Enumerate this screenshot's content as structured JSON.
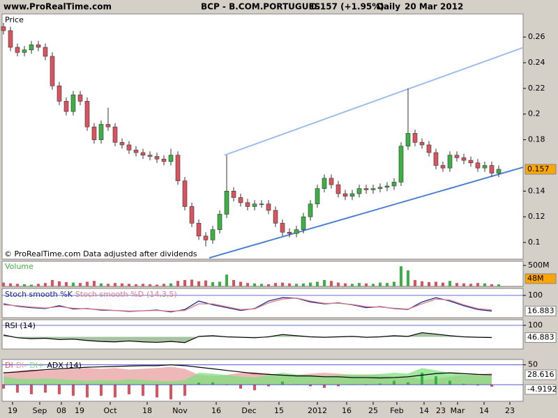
{
  "header": {
    "site": "www.ProRealTime.com",
    "symbol": "BCP - B.COM.PORTUGUES",
    "quote": "0.157 (+1.95%)",
    "period": "Daily",
    "date": "20 Mar 2012"
  },
  "x_labels": [
    "19",
    "Sep",
    "08",
    "19",
    "Oct",
    "18",
    "Nov",
    "16",
    "Dec",
    "15",
    "2012",
    "16",
    "25",
    "Feb",
    "14",
    "23",
    "Mar",
    "14",
    "23"
  ],
  "chart_data": [
    {
      "type": "candlestick",
      "title": "Price",
      "footnote": "© ProRealTime.com  Data adjusted after dividends",
      "open": [
        0.268,
        0.265,
        0.252,
        0.248,
        0.25,
        0.254,
        0.252,
        0.245,
        0.222,
        0.21,
        0.202,
        0.215,
        0.21,
        0.19,
        0.18,
        0.192,
        0.19,
        0.178,
        0.176,
        0.172,
        0.17,
        0.168,
        0.167,
        0.165,
        0.163,
        0.168,
        0.148,
        0.128,
        0.115,
        0.105,
        0.102,
        0.11,
        0.122,
        0.14,
        0.135,
        0.131,
        0.128,
        0.13,
        0.13,
        0.125,
        0.115,
        0.108,
        0.107,
        0.11,
        0.12,
        0.13,
        0.142,
        0.15,
        0.145,
        0.138,
        0.136,
        0.138,
        0.142,
        0.141,
        0.142,
        0.143,
        0.144,
        0.147,
        0.175,
        0.185,
        0.178,
        0.176,
        0.17,
        0.16,
        0.158,
        0.168,
        0.166,
        0.164,
        0.162,
        0.158,
        0.16,
        0.154
      ],
      "high": [
        0.271,
        0.268,
        0.255,
        0.253,
        0.257,
        0.257,
        0.255,
        0.248,
        0.225,
        0.213,
        0.218,
        0.218,
        0.213,
        0.193,
        0.195,
        0.205,
        0.193,
        0.181,
        0.179,
        0.175,
        0.173,
        0.171,
        0.17,
        0.168,
        0.173,
        0.171,
        0.151,
        0.131,
        0.118,
        0.108,
        0.113,
        0.125,
        0.168,
        0.143,
        0.138,
        0.134,
        0.133,
        0.133,
        0.133,
        0.128,
        0.118,
        0.111,
        0.113,
        0.123,
        0.133,
        0.145,
        0.153,
        0.153,
        0.148,
        0.141,
        0.141,
        0.145,
        0.145,
        0.145,
        0.146,
        0.147,
        0.15,
        0.178,
        0.22,
        0.188,
        0.181,
        0.179,
        0.173,
        0.163,
        0.171,
        0.171,
        0.169,
        0.167,
        0.165,
        0.163,
        0.163,
        0.16
      ],
      "low": [
        0.262,
        0.249,
        0.245,
        0.245,
        0.247,
        0.249,
        0.242,
        0.219,
        0.207,
        0.199,
        0.199,
        0.207,
        0.187,
        0.177,
        0.177,
        0.187,
        0.175,
        0.173,
        0.169,
        0.167,
        0.165,
        0.164,
        0.162,
        0.16,
        0.16,
        0.145,
        0.125,
        0.112,
        0.102,
        0.097,
        0.099,
        0.107,
        0.119,
        0.132,
        0.128,
        0.125,
        0.125,
        0.127,
        0.122,
        0.112,
        0.105,
        0.104,
        0.104,
        0.107,
        0.117,
        0.127,
        0.139,
        0.142,
        0.135,
        0.133,
        0.133,
        0.135,
        0.138,
        0.138,
        0.139,
        0.14,
        0.141,
        0.144,
        0.172,
        0.175,
        0.173,
        0.167,
        0.157,
        0.155,
        0.155,
        0.163,
        0.161,
        0.159,
        0.155,
        0.155,
        0.151,
        0.151
      ],
      "close": [
        0.265,
        0.252,
        0.248,
        0.25,
        0.254,
        0.252,
        0.245,
        0.222,
        0.21,
        0.202,
        0.215,
        0.21,
        0.19,
        0.18,
        0.192,
        0.19,
        0.178,
        0.176,
        0.172,
        0.17,
        0.168,
        0.167,
        0.165,
        0.163,
        0.168,
        0.148,
        0.128,
        0.115,
        0.105,
        0.102,
        0.11,
        0.122,
        0.14,
        0.135,
        0.131,
        0.128,
        0.13,
        0.13,
        0.125,
        0.115,
        0.108,
        0.107,
        0.11,
        0.12,
        0.13,
        0.142,
        0.15,
        0.145,
        0.138,
        0.136,
        0.138,
        0.142,
        0.141,
        0.142,
        0.143,
        0.144,
        0.147,
        0.175,
        0.185,
        0.178,
        0.176,
        0.17,
        0.16,
        0.158,
        0.168,
        0.166,
        0.164,
        0.162,
        0.158,
        0.16,
        0.154,
        0.157
      ],
      "up_color": "#3cb043",
      "down_color": "#d9535f",
      "trendlines": [
        {
          "from": 0.088,
          "to": 0.1586,
          "color": "#4a7fd4"
        },
        {
          "from": 0.168,
          "to": 0.2518,
          "color": "#9dbcf0"
        }
      ],
      "ylim": [
        0.087,
        0.278
      ],
      "yticks": [
        0.1,
        0.12,
        0.14,
        0.18,
        0.2,
        0.22,
        0.24,
        0.26
      ]
    },
    {
      "type": "volume",
      "title": "Volume",
      "values": [
        90,
        70,
        60,
        50,
        40,
        60,
        80,
        150,
        120,
        100,
        90,
        80,
        110,
        130,
        70,
        60,
        80,
        70,
        60,
        50,
        60,
        50,
        40,
        60,
        70,
        130,
        150,
        160,
        120,
        140,
        100,
        110,
        280,
        150,
        110,
        80,
        70,
        60,
        50,
        80,
        90,
        70,
        60,
        70,
        90,
        110,
        150,
        130,
        90,
        70,
        60,
        80,
        70,
        60,
        90,
        80,
        110,
        480,
        380,
        150,
        120,
        100,
        110,
        90,
        130,
        80,
        70,
        60,
        80,
        70,
        50,
        48
      ],
      "value_labels": [
        null,
        null,
        null,
        null,
        null,
        null,
        null,
        null,
        null,
        null,
        null,
        null,
        null,
        null,
        null,
        null,
        null,
        null,
        null,
        null,
        null,
        null,
        null,
        null,
        null,
        null,
        null,
        null,
        null,
        null,
        null,
        null,
        null,
        null,
        null,
        null,
        null,
        null,
        null,
        null,
        null,
        null,
        null,
        null,
        null,
        null,
        null,
        null,
        null,
        null,
        null,
        null,
        null,
        null,
        null,
        null,
        null,
        null,
        null,
        null,
        null,
        null,
        null,
        null,
        null,
        null,
        null,
        null,
        null,
        null,
        null,
        "48M"
      ],
      "ylim": [
        0,
        600
      ],
      "yticks": [
        {
          "value": 500,
          "label": "500M"
        }
      ]
    },
    {
      "type": "line",
      "title": "(14,3,5)",
      "series": [
        {
          "name": "Stoch smooth %K",
          "color": "#1a2a8a",
          "values": [
            55,
            42,
            35,
            30,
            45,
            28,
            30,
            22,
            20,
            15,
            18,
            22,
            12,
            25,
            70,
            50,
            35,
            20,
            30,
            70,
            88,
            85,
            65,
            55,
            60,
            50,
            35,
            40,
            30,
            25,
            65,
            88,
            70,
            45,
            25,
            16.883
          ]
        },
        {
          "name": "Stoch smooth %D",
          "color": "#e07a8a",
          "values": [
            50,
            45,
            38,
            33,
            40,
            32,
            28,
            25,
            20,
            17,
            18,
            20,
            16,
            20,
            55,
            55,
            40,
            25,
            28,
            60,
            80,
            86,
            70,
            58,
            58,
            52,
            40,
            38,
            32,
            27,
            55,
            80,
            75,
            50,
            30,
            22
          ]
        }
      ],
      "ylim": [
        0,
        100
      ],
      "yticks": [
        100
      ]
    },
    {
      "type": "area",
      "title": "RSI (14)",
      "series": [
        {
          "name": "RSI",
          "color": "#000000",
          "values": [
            58,
            46,
            42,
            44,
            38,
            40,
            34,
            30,
            28,
            32,
            28,
            26,
            30,
            25,
            52,
            55,
            50,
            48,
            46,
            50,
            60,
            55,
            50,
            48,
            50,
            52,
            48,
            50,
            55,
            52,
            68,
            62,
            55,
            50,
            48,
            46.883
          ]
        }
      ],
      "ylim": [
        0,
        100
      ],
      "yticks": [
        100
      ]
    },
    {
      "type": "dmi",
      "series": [
        {
          "name": "DI",
          "color": "#d9535f",
          "values": [
            -10,
            -20,
            -24,
            -20,
            -24,
            -28,
            -32,
            -28,
            -32,
            -24,
            -28,
            -32,
            -37,
            -28,
            5,
            6,
            -1,
            -10,
            -14,
            -4,
            8,
            1,
            -4,
            -8,
            -4,
            1,
            -1,
            3,
            10,
            6,
            30,
            21,
            10,
            2,
            -2,
            -4.9192
          ]
        },
        {
          "name": "DI-",
          "color": "#e8a0a0",
          "values": [
            30,
            35,
            38,
            36,
            38,
            40,
            42,
            40,
            42,
            38,
            40,
            42,
            45,
            40,
            25,
            22,
            25,
            30,
            32,
            28,
            22,
            25,
            28,
            30,
            28,
            25,
            26,
            24,
            20,
            22,
            12,
            15,
            20,
            24,
            26,
            28.616
          ]
        },
        {
          "name": "DI+",
          "color": "#7fe07f",
          "values": [
            20,
            15,
            14,
            16,
            14,
            12,
            10,
            12,
            10,
            14,
            12,
            10,
            8,
            12,
            30,
            28,
            24,
            20,
            18,
            24,
            30,
            26,
            24,
            22,
            24,
            26,
            25,
            27,
            30,
            28,
            42,
            36,
            30,
            26,
            24,
            23.7
          ]
        },
        {
          "name": "ADX (14)",
          "color": "#000000",
          "values": [
            30,
            32,
            35,
            38,
            40,
            42,
            44,
            45,
            46,
            47,
            48,
            48,
            50,
            48,
            44,
            40,
            36,
            32,
            28,
            26,
            24,
            22,
            22,
            20,
            20,
            18,
            18,
            17,
            18,
            20,
            24,
            28,
            30,
            28,
            26,
            25
          ]
        }
      ],
      "ylim": [
        -40,
        60
      ],
      "yticks": [
        50
      ]
    }
  ]
}
